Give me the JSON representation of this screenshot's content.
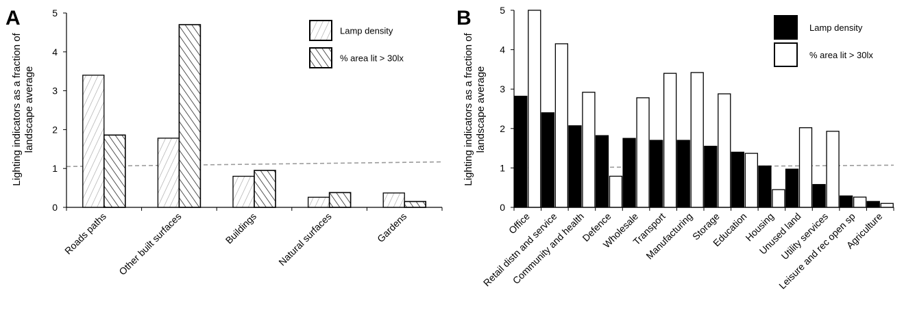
{
  "chart_data": [
    {
      "panel": "A",
      "type": "bar",
      "ylabel": "Lighting indicators as a fraction of landscape average",
      "ylim": [
        0,
        5
      ],
      "yticks": [
        "0",
        "1",
        "2",
        "3",
        "4",
        "5"
      ],
      "categories": [
        "Roads paths",
        "Other built surfaces",
        "Buildings",
        "Natural surfaces",
        "Gardens"
      ],
      "series": [
        {
          "name": "Lamp density",
          "values": [
            3.4,
            1.78,
            0.8,
            0.26,
            0.37
          ],
          "fill": "forward-hatch-light"
        },
        {
          "name": "% area lit > 30lx",
          "values": [
            1.86,
            4.7,
            0.95,
            0.38,
            0.15
          ],
          "fill": "back-hatch-dark"
        }
      ],
      "reference_line": {
        "y": 1.05,
        "style": "dashed"
      },
      "grid": false,
      "legend": "top-right"
    },
    {
      "panel": "B",
      "type": "bar",
      "ylabel": "Lighting indicators as a fraction of landscape average",
      "ylim": [
        0,
        5
      ],
      "yticks": [
        "0",
        "1",
        "2",
        "3",
        "4",
        "5"
      ],
      "categories": [
        "Office",
        "Retail distn and service",
        "Community and health",
        "Defence",
        "Wholesale",
        "Transport",
        "Manufacturing",
        "Storage",
        "Education",
        "Housing",
        "Unused land",
        "Utility services",
        "Leisure and rec open sp",
        "Agriculture"
      ],
      "series": [
        {
          "name": "Lamp density",
          "values": [
            2.82,
            2.4,
            2.07,
            1.82,
            1.75,
            1.7,
            1.7,
            1.55,
            1.4,
            1.05,
            0.97,
            0.58,
            0.29,
            0.15
          ],
          "fill": "#000000"
        },
        {
          "name": "% area lit > 30lx",
          "values": [
            5.0,
            4.15,
            2.92,
            0.79,
            2.78,
            3.4,
            3.42,
            2.88,
            1.37,
            0.45,
            2.02,
            1.93,
            0.26,
            0.1
          ],
          "fill": "#ffffff"
        }
      ],
      "reference_line": {
        "y": 1.0,
        "y_end": 1.07,
        "style": "dashed"
      },
      "grid": false,
      "legend": "top-right"
    }
  ],
  "colors": {
    "axis": "#000000",
    "bar_outline": "#000000",
    "hatch_light": "#a6a6a6",
    "hatch_dark": "#262626",
    "reference_line": "#9a9a9a"
  }
}
